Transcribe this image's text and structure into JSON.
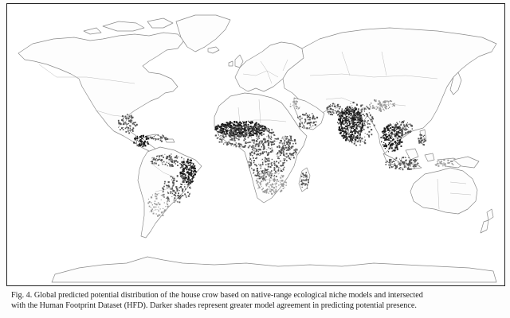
{
  "figure": {
    "caption_lines": [
      "Fig. 4. Global predicted potential distribution of the house crow based on native-range ecological niche models and intersected",
      "with the Human Footprint Dataset (HFD). Darker shades represent greater model agreement in predicting potential presence."
    ]
  },
  "map": {
    "colors": {
      "ocean": "#ffffff",
      "land": "#fdfdfd",
      "coastline": "#8a8a8a",
      "border": "#b3b3b3",
      "high_agreement": "#1a1a1a",
      "medium_agreement": "#555555",
      "low_agreement": "#9a9a9a"
    },
    "predicted_regions": [
      "Indian subcontinent",
      "Southeast Asia",
      "Southern China",
      "Philippines",
      "Indonesia",
      "Arabian Peninsula coast",
      "West Africa",
      "Central Africa",
      "East Africa",
      "Madagascar",
      "Mexico coast",
      "Central America",
      "Caribbean",
      "Northern South America",
      "Eastern Brazil"
    ]
  }
}
